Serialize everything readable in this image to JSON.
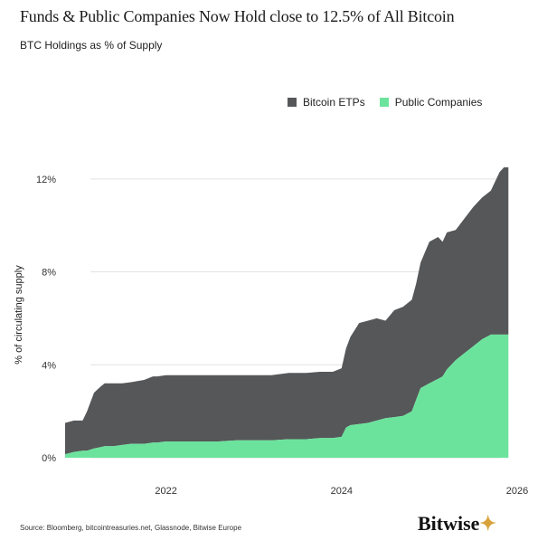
{
  "header": {
    "title": "Funds & Public Companies Now Hold close to 12.5% of All Bitcoin",
    "subtitle": "BTC Holdings as % of Supply"
  },
  "footer": {
    "source": "Source: Bloomberg, bitcointreasuries.net, Glassnode, Bitwise Europe",
    "logo_text": "Bitwise"
  },
  "colors": {
    "etp": "#555759",
    "public": "#6be39c",
    "axis_text": "#333333"
  },
  "chart_data": {
    "type": "area",
    "title": "BTC Holdings as % of Supply",
    "xlabel": "",
    "ylabel": "% of circulating supply",
    "xlim": [
      2020.85,
      2026.0
    ],
    "ylim": [
      0,
      12.5
    ],
    "x_ticks": [
      2022,
      2024,
      2026
    ],
    "x_tick_labels": [
      "2022",
      "2024",
      "2026"
    ],
    "y_ticks": [
      0,
      4,
      8,
      12
    ],
    "y_tick_labels": [
      "0%",
      "4%",
      "8%",
      "12%"
    ],
    "grid": "horizontal",
    "legend_position": "top-right",
    "stacked": true,
    "x": [
      2020.85,
      2020.95,
      2021.05,
      2021.1,
      2021.18,
      2021.25,
      2021.3,
      2021.4,
      2021.5,
      2021.6,
      2021.75,
      2021.85,
      2021.9,
      2022.0,
      2022.2,
      2022.4,
      2022.6,
      2022.8,
      2023.0,
      2023.2,
      2023.4,
      2023.6,
      2023.75,
      2023.9,
      2024.0,
      2024.05,
      2024.1,
      2024.2,
      2024.3,
      2024.4,
      2024.5,
      2024.6,
      2024.7,
      2024.8,
      2024.85,
      2024.9,
      2025.0,
      2025.1,
      2025.15,
      2025.2,
      2025.3,
      2025.4,
      2025.5,
      2025.6,
      2025.7,
      2025.8,
      2025.85,
      2025.9
    ],
    "series": [
      {
        "name": "Public Companies",
        "values": [
          0.15,
          0.25,
          0.3,
          0.3,
          0.4,
          0.45,
          0.5,
          0.5,
          0.55,
          0.6,
          0.6,
          0.65,
          0.65,
          0.7,
          0.7,
          0.7,
          0.7,
          0.75,
          0.75,
          0.75,
          0.8,
          0.8,
          0.85,
          0.85,
          0.9,
          1.3,
          1.4,
          1.45,
          1.5,
          1.6,
          1.7,
          1.75,
          1.8,
          2.0,
          2.5,
          3.0,
          3.2,
          3.4,
          3.5,
          3.8,
          4.2,
          4.5,
          4.8,
          5.1,
          5.3,
          5.3,
          5.3,
          5.3
        ]
      },
      {
        "name": "Bitcoin ETPs",
        "values": [
          1.35,
          1.35,
          1.3,
          1.7,
          2.4,
          2.6,
          2.7,
          2.7,
          2.65,
          2.65,
          2.75,
          2.85,
          2.85,
          2.85,
          2.85,
          2.85,
          2.85,
          2.8,
          2.8,
          2.8,
          2.85,
          2.85,
          2.85,
          2.85,
          2.95,
          3.4,
          3.8,
          4.35,
          4.4,
          4.4,
          4.2,
          4.6,
          4.7,
          4.8,
          5.0,
          5.4,
          6.1,
          6.1,
          5.8,
          5.9,
          5.6,
          5.8,
          6.0,
          6.1,
          6.2,
          7.0,
          7.2,
          7.2
        ]
      }
    ]
  }
}
